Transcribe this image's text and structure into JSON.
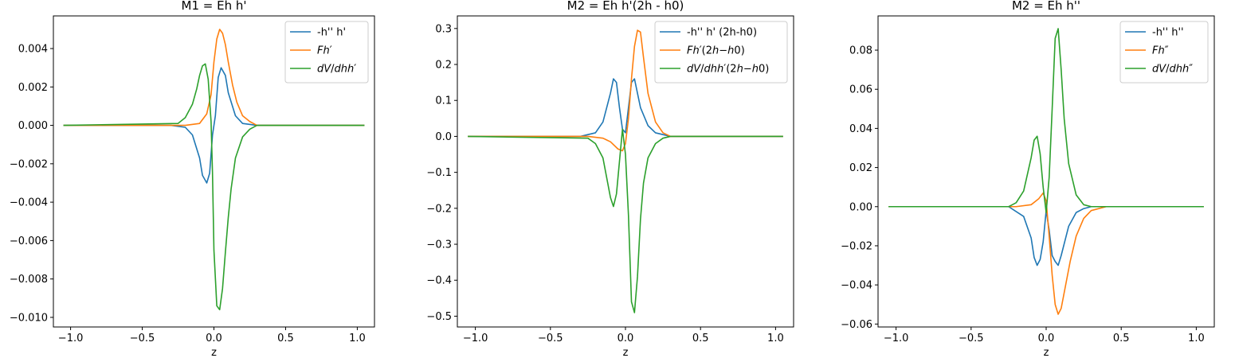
{
  "chart_data": [
    {
      "type": "line",
      "title": "M1 = Eh h'",
      "xlabel": "z",
      "ylabel": "",
      "xlim": [
        -1.12,
        1.12
      ],
      "ylim": [
        -0.0105,
        0.0057
      ],
      "xticks": [
        -1.0,
        -0.5,
        0.0,
        0.5,
        1.0
      ],
      "xtick_labels": [
        "−1.0",
        "−0.5",
        "0.0",
        "0.5",
        "1.0"
      ],
      "yticks": [
        0.004,
        0.002,
        0.0,
        -0.002,
        -0.004,
        -0.006,
        -0.008,
        -0.01
      ],
      "ytick_labels": [
        "0.004",
        "0.002",
        "0.000",
        "−0.002",
        "−0.004",
        "−0.006",
        "−0.008",
        "−0.010"
      ],
      "grid": false,
      "legend_position": "top-right",
      "series": [
        {
          "name": "-h'' h'",
          "color": "#1f77b4",
          "x": [
            -1.05,
            -0.3,
            -0.2,
            -0.15,
            -0.1,
            -0.08,
            -0.05,
            -0.03,
            -0.02,
            -0.01,
            0.0,
            0.01,
            0.02,
            0.03,
            0.05,
            0.08,
            0.1,
            0.15,
            0.2,
            0.3,
            1.05
          ],
          "y": [
            0.0,
            0.0,
            -0.0001,
            -0.0005,
            -0.0017,
            -0.0026,
            -0.003,
            -0.0025,
            -0.0015,
            -0.0005,
            0.0,
            0.0005,
            0.0015,
            0.0025,
            0.003,
            0.0026,
            0.0017,
            0.0005,
            0.0001,
            0.0,
            0.0
          ]
        },
        {
          "name": "Fh'",
          "color": "#ff7f0e",
          "x": [
            -1.05,
            -0.2,
            -0.1,
            -0.05,
            -0.02,
            0.0,
            0.02,
            0.04,
            0.06,
            0.08,
            0.1,
            0.13,
            0.16,
            0.2,
            0.25,
            0.3,
            1.05
          ],
          "y": [
            0.0,
            0.0,
            0.0001,
            0.0006,
            0.0016,
            0.0033,
            0.0045,
            0.005,
            0.0048,
            0.0042,
            0.0033,
            0.0021,
            0.0012,
            0.0005,
            0.0002,
            0.0,
            0.0
          ]
        },
        {
          "name": "dV/dhh'",
          "color": "#2ca02c",
          "x": [
            -1.05,
            -0.25,
            -0.2,
            -0.15,
            -0.12,
            -0.1,
            -0.08,
            -0.06,
            -0.04,
            -0.02,
            -0.01,
            0.0,
            0.02,
            0.04,
            0.06,
            0.08,
            0.1,
            0.12,
            0.15,
            0.2,
            0.25,
            0.3,
            1.05
          ],
          "y": [
            0.0,
            0.0001,
            0.0004,
            0.0011,
            0.0019,
            0.0026,
            0.0031,
            0.0032,
            0.0024,
            0.0002,
            -0.0025,
            -0.0065,
            -0.0094,
            -0.0096,
            -0.0085,
            -0.0066,
            -0.0048,
            -0.0033,
            -0.0017,
            -0.0006,
            -0.0002,
            0.0,
            0.0
          ]
        }
      ]
    },
    {
      "type": "line",
      "title": "M2 = Eh h'(2h - h0)",
      "xlabel": "z",
      "ylabel": "",
      "xlim": [
        -1.12,
        1.12
      ],
      "ylim": [
        -0.53,
        0.335
      ],
      "xticks": [
        -1.0,
        -0.5,
        0.0,
        0.5,
        1.0
      ],
      "xtick_labels": [
        "−1.0",
        "−0.5",
        "0.0",
        "0.5",
        "1.0"
      ],
      "yticks": [
        0.3,
        0.2,
        0.1,
        0.0,
        -0.1,
        -0.2,
        -0.3,
        -0.4,
        -0.5
      ],
      "ytick_labels": [
        "0.3",
        "0.2",
        "0.1",
        "0.0",
        "−0.1",
        "−0.2",
        "−0.3",
        "−0.4",
        "−0.5"
      ],
      "grid": false,
      "legend_position": "top-right",
      "series": [
        {
          "name": "-h'' h' (2h-h0)",
          "color": "#1f77b4",
          "x": [
            -1.05,
            -0.3,
            -0.2,
            -0.15,
            -0.1,
            -0.08,
            -0.06,
            -0.04,
            -0.02,
            0.0,
            0.02,
            0.04,
            0.06,
            0.08,
            0.1,
            0.15,
            0.2,
            0.3,
            1.05
          ],
          "y": [
            0.0,
            0.0,
            0.01,
            0.04,
            0.12,
            0.16,
            0.15,
            0.08,
            0.02,
            0.01,
            0.08,
            0.15,
            0.16,
            0.12,
            0.08,
            0.03,
            0.01,
            0.0,
            0.0
          ]
        },
        {
          "name": "Fh'(2h-h0)",
          "color": "#ff7f0e",
          "x": [
            -1.05,
            -0.25,
            -0.15,
            -0.1,
            -0.05,
            -0.02,
            0.0,
            0.02,
            0.04,
            0.06,
            0.08,
            0.1,
            0.12,
            0.15,
            0.2,
            0.25,
            0.3,
            1.05
          ],
          "y": [
            0.0,
            0.0,
            -0.005,
            -0.015,
            -0.035,
            -0.04,
            -0.02,
            0.05,
            0.16,
            0.25,
            0.295,
            0.29,
            0.22,
            0.12,
            0.04,
            0.01,
            0.0,
            0.0
          ]
        },
        {
          "name": "dV/dhh'(2h-h0)",
          "color": "#2ca02c",
          "x": [
            -1.05,
            -0.25,
            -0.2,
            -0.15,
            -0.1,
            -0.08,
            -0.06,
            -0.04,
            -0.02,
            0.0,
            0.02,
            0.04,
            0.06,
            0.08,
            0.1,
            0.12,
            0.15,
            0.2,
            0.25,
            0.3,
            1.05
          ],
          "y": [
            0.0,
            -0.005,
            -0.02,
            -0.06,
            -0.17,
            -0.195,
            -0.16,
            -0.07,
            0.02,
            -0.05,
            -0.22,
            -0.46,
            -0.49,
            -0.39,
            -0.23,
            -0.13,
            -0.06,
            -0.02,
            -0.005,
            0.0,
            0.0
          ]
        }
      ]
    },
    {
      "type": "line",
      "title": "M2 = Eh h''",
      "xlabel": "z",
      "ylabel": "",
      "xlim": [
        -1.12,
        1.12
      ],
      "ylim": [
        -0.0615,
        0.0975
      ],
      "xticks": [
        -1.0,
        -0.5,
        0.0,
        0.5,
        1.0
      ],
      "xtick_labels": [
        "−1.0",
        "−0.5",
        "0.0",
        "0.5",
        "1.0"
      ],
      "yticks": [
        0.08,
        0.06,
        0.04,
        0.02,
        0.0,
        -0.02,
        -0.04,
        -0.06
      ],
      "ytick_labels": [
        "0.08",
        "0.06",
        "0.04",
        "0.02",
        "0.00",
        "−0.02",
        "−0.04",
        "−0.06"
      ],
      "grid": false,
      "legend_position": "top-right",
      "series": [
        {
          "name": "-h'' h''",
          "color": "#1f77b4",
          "x": [
            -1.05,
            -0.25,
            -0.15,
            -0.1,
            -0.08,
            -0.06,
            -0.04,
            -0.02,
            0.0,
            0.02,
            0.04,
            0.06,
            0.08,
            0.1,
            0.15,
            0.2,
            0.25,
            0.3,
            1.05
          ],
          "y": [
            0.0,
            0.0,
            -0.005,
            -0.016,
            -0.026,
            -0.03,
            -0.027,
            -0.018,
            -0.002,
            -0.012,
            -0.025,
            -0.028,
            -0.03,
            -0.025,
            -0.01,
            -0.003,
            -0.001,
            0.0,
            0.0
          ]
        },
        {
          "name": "Fh''",
          "color": "#ff7f0e",
          "x": [
            -1.05,
            -0.2,
            -0.1,
            -0.05,
            -0.02,
            0.0,
            0.02,
            0.04,
            0.06,
            0.08,
            0.1,
            0.13,
            0.16,
            0.2,
            0.25,
            0.3,
            0.4,
            1.05
          ],
          "y": [
            0.0,
            0.0,
            0.001,
            0.004,
            0.007,
            0.003,
            -0.015,
            -0.035,
            -0.05,
            -0.055,
            -0.052,
            -0.04,
            -0.028,
            -0.015,
            -0.006,
            -0.002,
            0.0,
            0.0
          ]
        },
        {
          "name": "dV/dhh''",
          "color": "#2ca02c",
          "x": [
            -1.05,
            -0.25,
            -0.2,
            -0.15,
            -0.1,
            -0.08,
            -0.06,
            -0.04,
            -0.02,
            0.0,
            0.02,
            0.04,
            0.06,
            0.08,
            0.1,
            0.12,
            0.15,
            0.2,
            0.25,
            0.3,
            1.05
          ],
          "y": [
            0.0,
            0.0,
            0.002,
            0.008,
            0.025,
            0.034,
            0.036,
            0.027,
            0.01,
            -0.003,
            0.015,
            0.05,
            0.086,
            0.091,
            0.07,
            0.045,
            0.022,
            0.006,
            0.001,
            0.0,
            0.0
          ]
        }
      ]
    }
  ]
}
